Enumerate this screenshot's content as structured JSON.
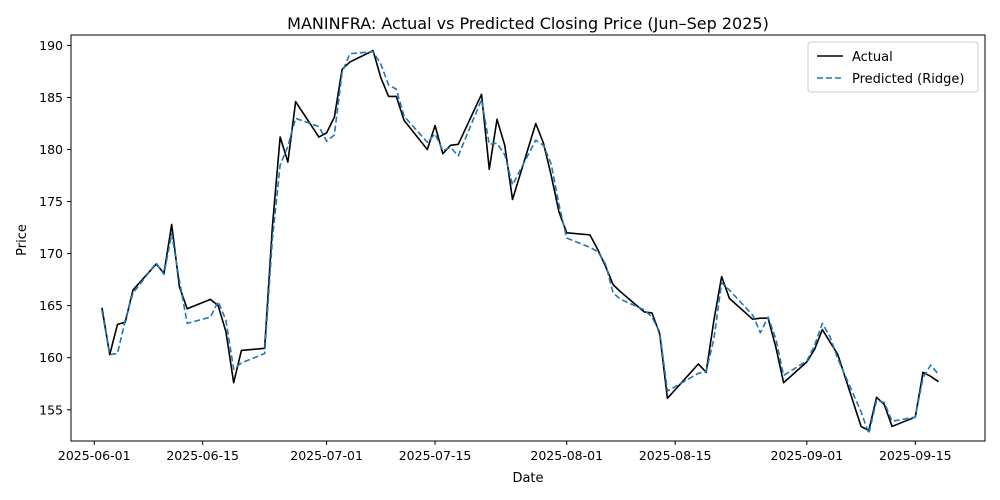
{
  "chart_data": {
    "type": "line",
    "title": "MANINFRA: Actual vs Predicted Closing Price (Jun–Sep 2025)",
    "xlabel": "Date",
    "ylabel": "Price",
    "xlim": [
      "2025-05-29",
      "2025-09-24"
    ],
    "ylim": [
      152,
      191
    ],
    "x_ticks": [
      "2025-06-01",
      "2025-06-15",
      "2025-07-01",
      "2025-07-15",
      "2025-08-01",
      "2025-08-15",
      "2025-09-01",
      "2025-09-15"
    ],
    "y_ticks": [
      155,
      160,
      165,
      170,
      175,
      180,
      185,
      190
    ],
    "grid": false,
    "legend_position": "top-right",
    "x": [
      "2025-06-02",
      "2025-06-03",
      "2025-06-04",
      "2025-06-05",
      "2025-06-06",
      "2025-06-09",
      "2025-06-10",
      "2025-06-11",
      "2025-06-12",
      "2025-06-13",
      "2025-06-16",
      "2025-06-17",
      "2025-06-18",
      "2025-06-19",
      "2025-06-20",
      "2025-06-23",
      "2025-06-24",
      "2025-06-25",
      "2025-06-26",
      "2025-06-27",
      "2025-06-30",
      "2025-07-01",
      "2025-07-02",
      "2025-07-03",
      "2025-07-04",
      "2025-07-07",
      "2025-07-08",
      "2025-07-09",
      "2025-07-10",
      "2025-07-11",
      "2025-07-14",
      "2025-07-15",
      "2025-07-16",
      "2025-07-17",
      "2025-07-18",
      "2025-07-21",
      "2025-07-22",
      "2025-07-23",
      "2025-07-24",
      "2025-07-25",
      "2025-07-28",
      "2025-07-29",
      "2025-07-30",
      "2025-07-31",
      "2025-08-01",
      "2025-08-04",
      "2025-08-05",
      "2025-08-06",
      "2025-08-07",
      "2025-08-08",
      "2025-08-11",
      "2025-08-12",
      "2025-08-13",
      "2025-08-14",
      "2025-08-18",
      "2025-08-19",
      "2025-08-20",
      "2025-08-21",
      "2025-08-22",
      "2025-08-25",
      "2025-08-26",
      "2025-08-27",
      "2025-08-28",
      "2025-08-29",
      "2025-09-01",
      "2025-09-02",
      "2025-09-03",
      "2025-09-04",
      "2025-09-05",
      "2025-09-08",
      "2025-09-09",
      "2025-09-10",
      "2025-09-11",
      "2025-09-12",
      "2025-09-15",
      "2025-09-16",
      "2025-09-17",
      "2025-09-18"
    ],
    "series": [
      {
        "name": "Actual",
        "color": "#000000",
        "style": "solid",
        "values": [
          164.8,
          160.3,
          163.2,
          163.4,
          166.5,
          169.0,
          168.1,
          172.8,
          166.8,
          164.7,
          165.6,
          165.0,
          162.5,
          157.6,
          160.7,
          160.9,
          172.6,
          181.2,
          178.8,
          184.6,
          181.2,
          181.6,
          183.1,
          187.7,
          188.4,
          189.5,
          186.9,
          185.1,
          185.1,
          182.8,
          180.0,
          182.3,
          179.6,
          180.4,
          180.5,
          185.3,
          178.1,
          182.9,
          180.4,
          175.2,
          182.5,
          180.6,
          177.5,
          174.0,
          172.0,
          171.8,
          170.4,
          168.8,
          167.0,
          166.3,
          164.4,
          164.3,
          162.3,
          156.1,
          159.4,
          158.6,
          163.6,
          167.8,
          165.7,
          163.7,
          163.8,
          163.8,
          161.0,
          157.6,
          159.6,
          160.8,
          162.7,
          161.5,
          160.3,
          153.4,
          153.0,
          156.2,
          155.5,
          153.4,
          154.3,
          158.6,
          158.2,
          157.7
        ]
      },
      {
        "name": "Predicted (Ridge)",
        "color": "#1f77b4",
        "style": "dashed",
        "values": [
          164.5,
          160.3,
          160.4,
          163.6,
          166.2,
          169.1,
          168.0,
          171.9,
          167.4,
          163.3,
          163.9,
          165.4,
          163.6,
          158.9,
          159.5,
          160.4,
          171.4,
          178.5,
          180.3,
          183.0,
          182.2,
          180.8,
          181.4,
          187.4,
          189.2,
          189.4,
          188.2,
          186.2,
          185.8,
          183.2,
          180.7,
          181.5,
          179.9,
          180.2,
          179.4,
          184.8,
          180.5,
          180.6,
          179.5,
          176.6,
          180.9,
          180.4,
          178.6,
          174.7,
          171.5,
          170.6,
          170.2,
          169.0,
          166.2,
          165.6,
          164.6,
          163.9,
          162.5,
          156.8,
          158.5,
          158.7,
          161.8,
          167.2,
          166.5,
          164.1,
          162.4,
          163.9,
          161.8,
          158.3,
          159.7,
          161.2,
          163.3,
          162.0,
          159.9,
          154.8,
          152.7,
          155.9,
          155.7,
          153.9,
          154.3,
          158.1,
          159.3,
          158.4
        ]
      }
    ]
  }
}
